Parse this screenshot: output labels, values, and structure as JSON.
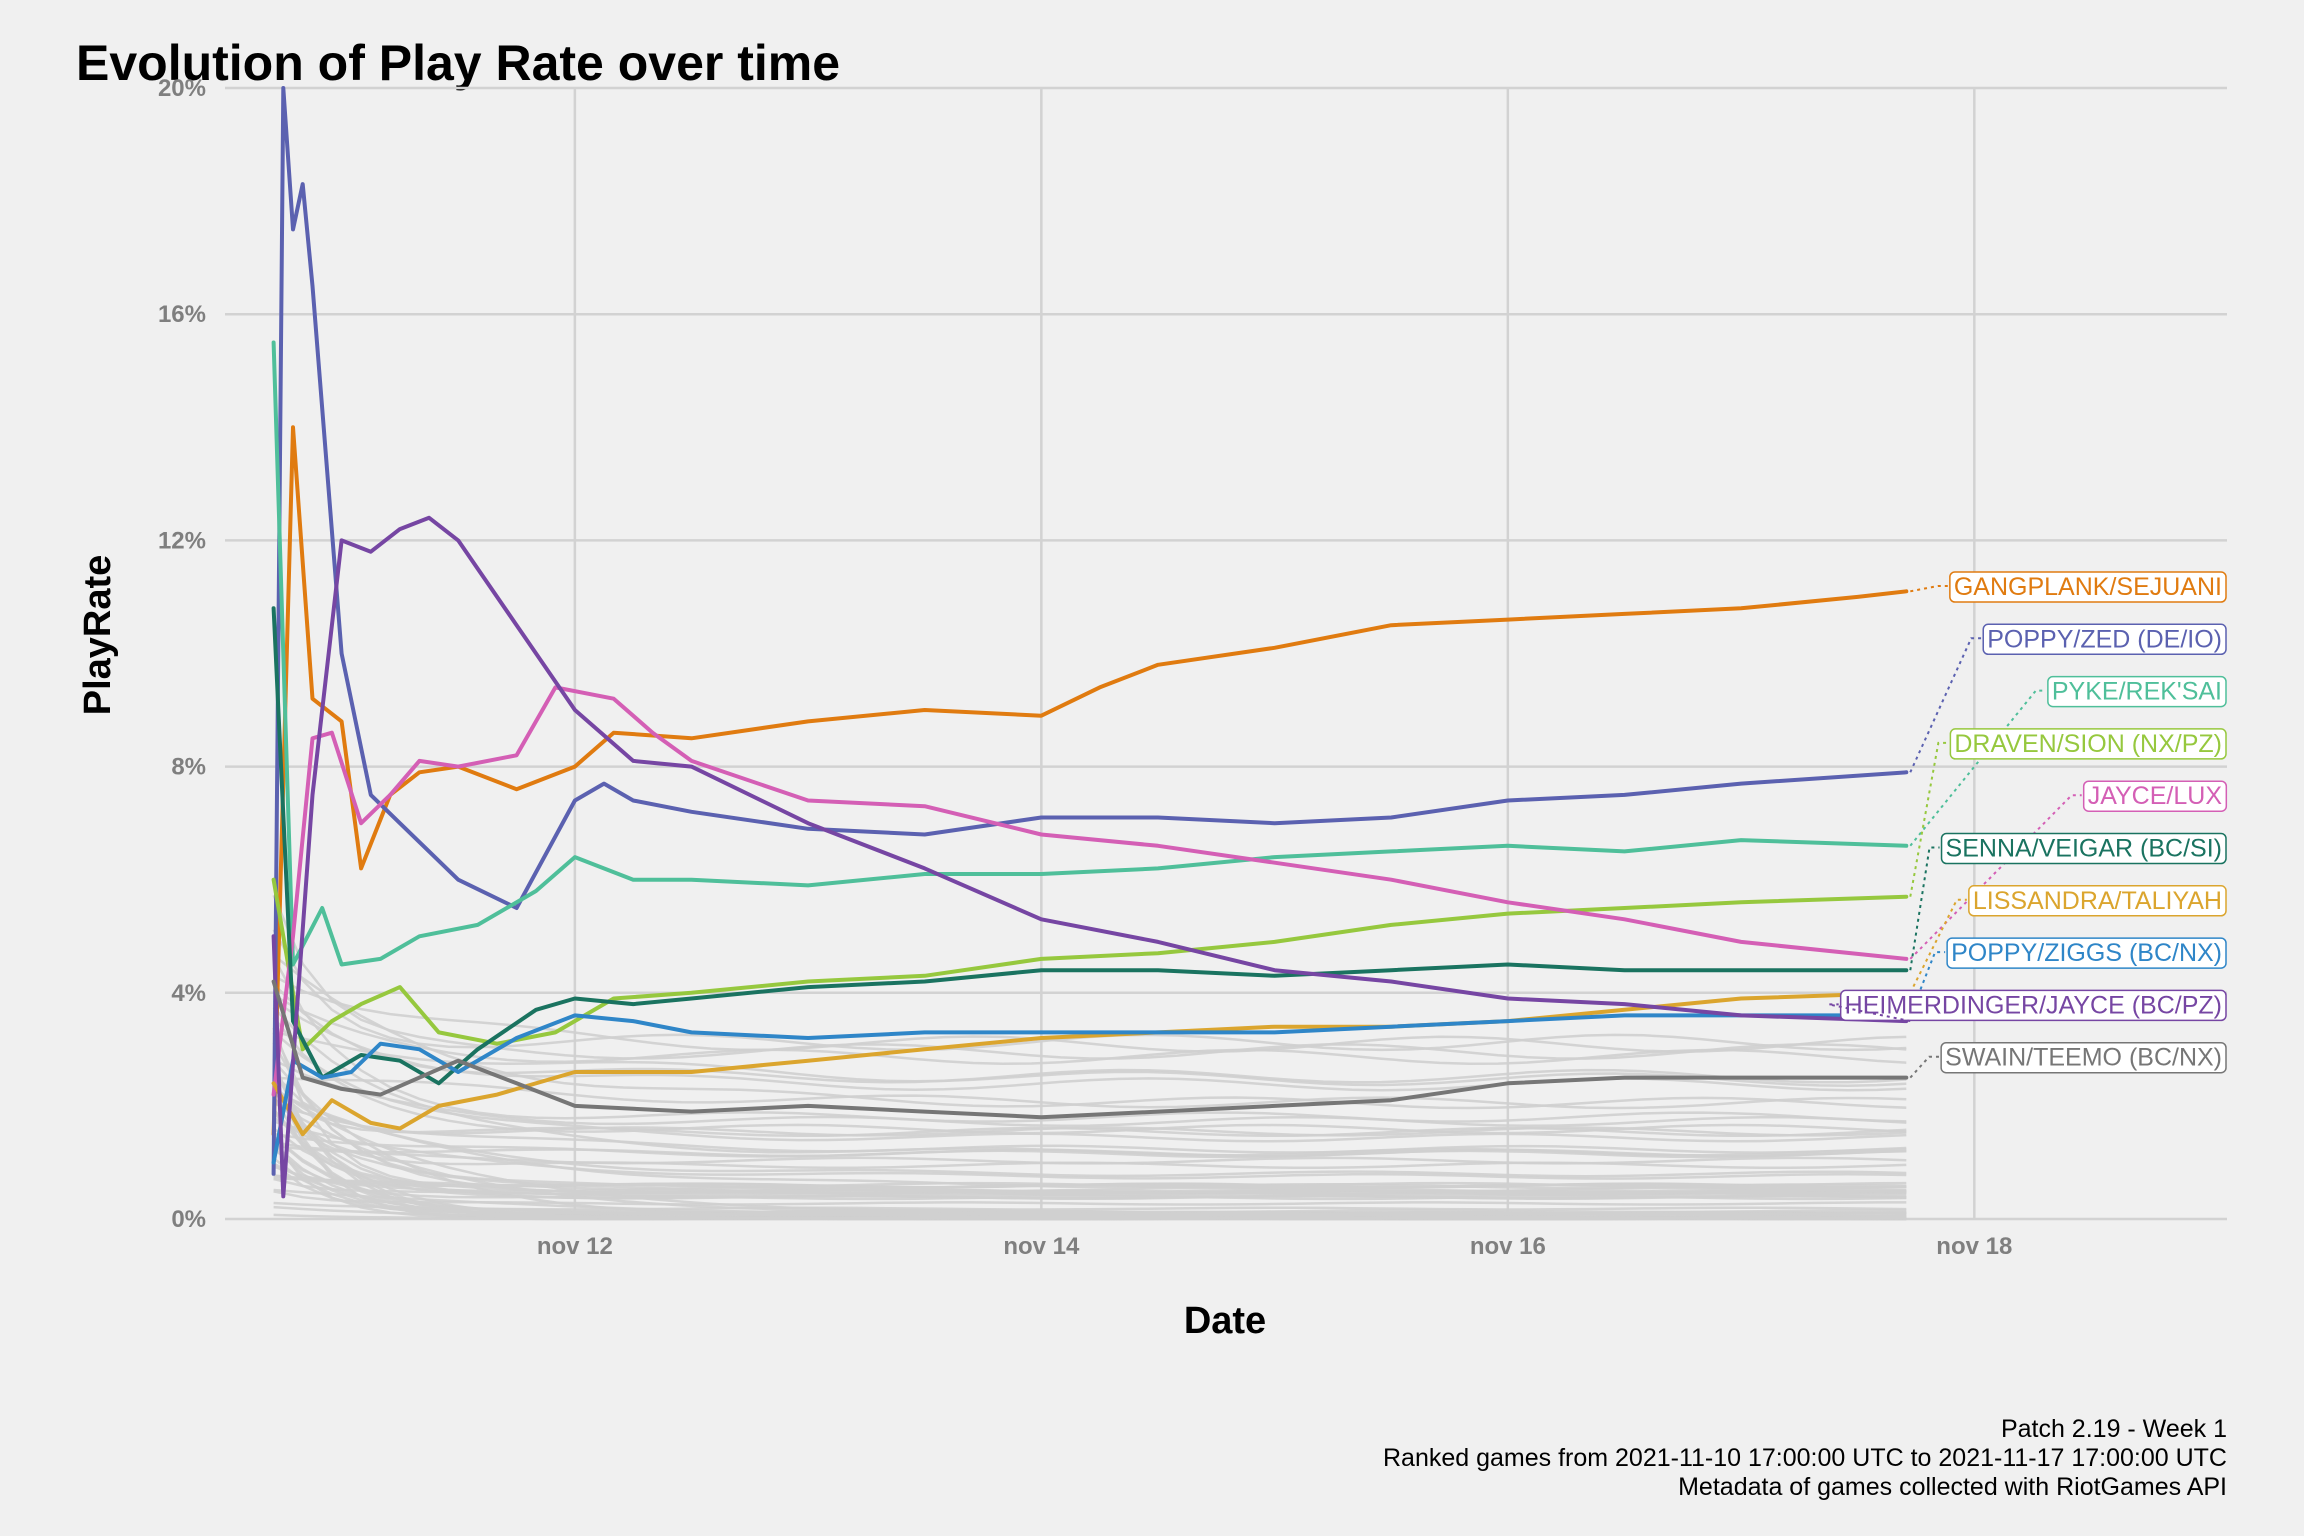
{
  "chart_data": {
    "type": "line",
    "title": "Evolution of Play Rate over time",
    "xlabel": "Date",
    "ylabel": "PlayRate",
    "x_ticks": [
      "nov 12",
      "nov 14",
      "nov 16",
      "nov 18"
    ],
    "y_ticks": [
      "0%",
      "4%",
      "8%",
      "12%",
      "16%",
      "20%"
    ],
    "xlim": [
      "2021-11-10 12:00",
      "2021-11-19 02:00"
    ],
    "ylim": [
      0,
      20
    ],
    "grid": true,
    "legend": "direct labels at right",
    "caption": [
      "Patch 2.19 - Week 1",
      "Ranked games from 2021-11-10 17:00:00 UTC to 2021-11-17 17:00:00 UTC",
      "Metadata of games collected with RiotGames API"
    ],
    "series": [
      {
        "name": "GANGPLANK/SEJUANI",
        "color": "#e07b10",
        "points": [
          [
            "11-10 17:00",
            1.5
          ],
          [
            "11-10 19:00",
            14.0
          ],
          [
            "11-10 21:00",
            9.2
          ],
          [
            "11-11 00:00",
            8.8
          ],
          [
            "11-11 02:00",
            6.2
          ],
          [
            "11-11 05:00",
            7.5
          ],
          [
            "11-11 08:00",
            7.9
          ],
          [
            "11-11 12:00",
            8.0
          ],
          [
            "11-11 18:00",
            7.6
          ],
          [
            "11-12 00:00",
            8.0
          ],
          [
            "11-12 04:00",
            8.6
          ],
          [
            "11-12 12:00",
            8.5
          ],
          [
            "11-13 00:00",
            8.8
          ],
          [
            "11-13 12:00",
            9.0
          ],
          [
            "11-14 00:00",
            8.9
          ],
          [
            "11-14 06:00",
            9.4
          ],
          [
            "11-14 12:00",
            9.8
          ],
          [
            "11-15 00:00",
            10.1
          ],
          [
            "11-15 12:00",
            10.5
          ],
          [
            "11-16 00:00",
            10.6
          ],
          [
            "11-16 12:00",
            10.7
          ],
          [
            "11-17 00:00",
            10.8
          ],
          [
            "11-17 12:00",
            11.0
          ],
          [
            "11-17 17:00",
            11.1
          ]
        ]
      },
      {
        "name": "POPPY/ZED (DE/IO)",
        "color": "#5b61b0",
        "points": [
          [
            "11-10 17:00",
            0.8
          ],
          [
            "11-10 18:00",
            20.0
          ],
          [
            "11-10 19:00",
            17.5
          ],
          [
            "11-10 20:00",
            18.3
          ],
          [
            "11-10 21:00",
            16.5
          ],
          [
            "11-11 00:00",
            10.0
          ],
          [
            "11-11 03:00",
            7.5
          ],
          [
            "11-11 06:00",
            7.0
          ],
          [
            "11-11 12:00",
            6.0
          ],
          [
            "11-11 18:00",
            5.5
          ],
          [
            "11-12 00:00",
            7.4
          ],
          [
            "11-12 03:00",
            7.7
          ],
          [
            "11-12 06:00",
            7.4
          ],
          [
            "11-12 12:00",
            7.2
          ],
          [
            "11-13 00:00",
            6.9
          ],
          [
            "11-13 12:00",
            6.8
          ],
          [
            "11-14 00:00",
            7.1
          ],
          [
            "11-14 12:00",
            7.1
          ],
          [
            "11-15 00:00",
            7.0
          ],
          [
            "11-15 12:00",
            7.1
          ],
          [
            "11-16 00:00",
            7.4
          ],
          [
            "11-16 12:00",
            7.5
          ],
          [
            "11-17 00:00",
            7.7
          ],
          [
            "11-17 17:00",
            7.9
          ]
        ]
      },
      {
        "name": "PYKE/REK'SAI",
        "color": "#4fbf9a",
        "points": [
          [
            "11-10 17:00",
            15.5
          ],
          [
            "11-10 19:00",
            4.5
          ],
          [
            "11-10 22:00",
            5.5
          ],
          [
            "11-11 00:00",
            4.5
          ],
          [
            "11-11 04:00",
            4.6
          ],
          [
            "11-11 08:00",
            5.0
          ],
          [
            "11-11 14:00",
            5.2
          ],
          [
            "11-11 20:00",
            5.8
          ],
          [
            "11-12 00:00",
            6.4
          ],
          [
            "11-12 06:00",
            6.0
          ],
          [
            "11-12 12:00",
            6.0
          ],
          [
            "11-13 00:00",
            5.9
          ],
          [
            "11-13 12:00",
            6.1
          ],
          [
            "11-14 00:00",
            6.1
          ],
          [
            "11-14 12:00",
            6.2
          ],
          [
            "11-15 00:00",
            6.4
          ],
          [
            "11-15 12:00",
            6.5
          ],
          [
            "11-16 00:00",
            6.6
          ],
          [
            "11-16 12:00",
            6.5
          ],
          [
            "11-17 00:00",
            6.7
          ],
          [
            "11-17 17:00",
            6.6
          ]
        ]
      },
      {
        "name": "DRAVEN/SION (NX/PZ)",
        "color": "#96c83e",
        "points": [
          [
            "11-10 17:00",
            6.0
          ],
          [
            "11-10 20:00",
            3.0
          ],
          [
            "11-10 23:00",
            3.5
          ],
          [
            "11-11 02:00",
            3.8
          ],
          [
            "11-11 06:00",
            4.1
          ],
          [
            "11-11 10:00",
            3.3
          ],
          [
            "11-11 16:00",
            3.1
          ],
          [
            "11-11 22:00",
            3.3
          ],
          [
            "11-12 04:00",
            3.9
          ],
          [
            "11-12 12:00",
            4.0
          ],
          [
            "11-13 00:00",
            4.2
          ],
          [
            "11-13 12:00",
            4.3
          ],
          [
            "11-14 00:00",
            4.6
          ],
          [
            "11-14 12:00",
            4.7
          ],
          [
            "11-15 00:00",
            4.9
          ],
          [
            "11-15 12:00",
            5.2
          ],
          [
            "11-16 00:00",
            5.4
          ],
          [
            "11-16 12:00",
            5.5
          ],
          [
            "11-17 00:00",
            5.6
          ],
          [
            "11-17 17:00",
            5.7
          ]
        ]
      },
      {
        "name": "JAYCE/LUX",
        "color": "#d45fb5",
        "points": [
          [
            "11-10 17:00",
            2.2
          ],
          [
            "11-10 19:00",
            5.0
          ],
          [
            "11-10 21:00",
            8.5
          ],
          [
            "11-10 23:00",
            8.6
          ],
          [
            "11-11 02:00",
            7.0
          ],
          [
            "11-11 05:00",
            7.5
          ],
          [
            "11-11 08:00",
            8.1
          ],
          [
            "11-11 12:00",
            8.0
          ],
          [
            "11-11 18:00",
            8.2
          ],
          [
            "11-11 22:00",
            9.4
          ],
          [
            "11-12 04:00",
            9.2
          ],
          [
            "11-12 08:00",
            8.6
          ],
          [
            "11-12 12:00",
            8.1
          ],
          [
            "11-13 00:00",
            7.4
          ],
          [
            "11-13 12:00",
            7.3
          ],
          [
            "11-14 00:00",
            6.8
          ],
          [
            "11-14 12:00",
            6.6
          ],
          [
            "11-15 00:00",
            6.3
          ],
          [
            "11-15 12:00",
            6.0
          ],
          [
            "11-16 00:00",
            5.6
          ],
          [
            "11-16 12:00",
            5.3
          ],
          [
            "11-17 00:00",
            4.9
          ],
          [
            "11-17 17:00",
            4.6
          ]
        ]
      },
      {
        "name": "SENNA/VEIGAR (BC/SI)",
        "color": "#1a7360",
        "points": [
          [
            "11-10 17:00",
            10.8
          ],
          [
            "11-10 19:00",
            3.5
          ],
          [
            "11-10 22:00",
            2.5
          ],
          [
            "11-11 02:00",
            2.9
          ],
          [
            "11-11 06:00",
            2.8
          ],
          [
            "11-11 10:00",
            2.4
          ],
          [
            "11-11 14:00",
            3.0
          ],
          [
            "11-11 20:00",
            3.7
          ],
          [
            "11-12 00:00",
            3.9
          ],
          [
            "11-12 06:00",
            3.8
          ],
          [
            "11-12 12:00",
            3.9
          ],
          [
            "11-13 00:00",
            4.1
          ],
          [
            "11-13 12:00",
            4.2
          ],
          [
            "11-14 00:00",
            4.4
          ],
          [
            "11-14 12:00",
            4.4
          ],
          [
            "11-15 00:00",
            4.3
          ],
          [
            "11-15 12:00",
            4.4
          ],
          [
            "11-16 00:00",
            4.5
          ],
          [
            "11-16 12:00",
            4.4
          ],
          [
            "11-17 00:00",
            4.4
          ],
          [
            "11-17 17:00",
            4.4
          ]
        ]
      },
      {
        "name": "LISSANDRA/TALIYAH",
        "color": "#dba52e",
        "points": [
          [
            "11-10 17:00",
            2.4
          ],
          [
            "11-10 20:00",
            1.5
          ],
          [
            "11-10 23:00",
            2.1
          ],
          [
            "11-11 03:00",
            1.7
          ],
          [
            "11-11 06:00",
            1.6
          ],
          [
            "11-11 10:00",
            2.0
          ],
          [
            "11-11 16:00",
            2.2
          ],
          [
            "11-12 00:00",
            2.6
          ],
          [
            "11-12 12:00",
            2.6
          ],
          [
            "11-13 00:00",
            2.8
          ],
          [
            "11-13 06:00",
            2.9
          ],
          [
            "11-13 12:00",
            3.0
          ],
          [
            "11-14 00:00",
            3.2
          ],
          [
            "11-14 12:00",
            3.3
          ],
          [
            "11-15 00:00",
            3.4
          ],
          [
            "11-15 12:00",
            3.4
          ],
          [
            "11-16 00:00",
            3.5
          ],
          [
            "11-16 12:00",
            3.7
          ],
          [
            "11-17 00:00",
            3.9
          ],
          [
            "11-17 17:00",
            4.0
          ]
        ]
      },
      {
        "name": "POPPY/ZIGGS (BC/NX)",
        "color": "#2f86c8",
        "points": [
          [
            "11-10 17:00",
            1.0
          ],
          [
            "11-10 19:00",
            2.8
          ],
          [
            "11-10 22:00",
            2.5
          ],
          [
            "11-11 01:00",
            2.6
          ],
          [
            "11-11 04:00",
            3.1
          ],
          [
            "11-11 08:00",
            3.0
          ],
          [
            "11-11 12:00",
            2.6
          ],
          [
            "11-11 18:00",
            3.2
          ],
          [
            "11-12 00:00",
            3.6
          ],
          [
            "11-12 06:00",
            3.5
          ],
          [
            "11-12 12:00",
            3.3
          ],
          [
            "11-13 00:00",
            3.2
          ],
          [
            "11-13 12:00",
            3.3
          ],
          [
            "11-14 00:00",
            3.3
          ],
          [
            "11-14 12:00",
            3.3
          ],
          [
            "11-15 00:00",
            3.3
          ],
          [
            "11-15 12:00",
            3.4
          ],
          [
            "11-16 00:00",
            3.5
          ],
          [
            "11-16 12:00",
            3.6
          ],
          [
            "11-17 00:00",
            3.6
          ],
          [
            "11-17 17:00",
            3.6
          ]
        ]
      },
      {
        "name": "HEIMERDINGER/JAYCE (BC/PZ)",
        "color": "#7646a3",
        "points": [
          [
            "11-10 17:00",
            5.0
          ],
          [
            "11-10 18:00",
            0.4
          ],
          [
            "11-10 21:00",
            7.5
          ],
          [
            "11-11 00:00",
            12.0
          ],
          [
            "11-11 03:00",
            11.8
          ],
          [
            "11-11 06:00",
            12.2
          ],
          [
            "11-11 09:00",
            12.4
          ],
          [
            "11-11 12:00",
            12.0
          ],
          [
            "11-11 18:00",
            10.5
          ],
          [
            "11-12 00:00",
            9.0
          ],
          [
            "11-12 06:00",
            8.1
          ],
          [
            "11-12 12:00",
            8.0
          ],
          [
            "11-13 00:00",
            7.0
          ],
          [
            "11-13 12:00",
            6.2
          ],
          [
            "11-14 00:00",
            5.3
          ],
          [
            "11-14 12:00",
            4.9
          ],
          [
            "11-15 00:00",
            4.4
          ],
          [
            "11-15 12:00",
            4.2
          ],
          [
            "11-16 00:00",
            3.9
          ],
          [
            "11-16 12:00",
            3.8
          ],
          [
            "11-17 00:00",
            3.6
          ],
          [
            "11-17 17:00",
            3.5
          ]
        ]
      },
      {
        "name": "SWAIN/TEEMO (BC/NX)",
        "color": "#767676",
        "points": [
          [
            "11-10 17:00",
            4.2
          ],
          [
            "11-10 20:00",
            2.5
          ],
          [
            "11-11 00:00",
            2.3
          ],
          [
            "11-11 04:00",
            2.2
          ],
          [
            "11-11 08:00",
            2.5
          ],
          [
            "11-11 12:00",
            2.8
          ],
          [
            "11-11 18:00",
            2.4
          ],
          [
            "11-12 00:00",
            2.0
          ],
          [
            "11-12 12:00",
            1.9
          ],
          [
            "11-13 00:00",
            2.0
          ],
          [
            "11-13 12:00",
            1.9
          ],
          [
            "11-14 00:00",
            1.8
          ],
          [
            "11-14 12:00",
            1.9
          ],
          [
            "11-15 00:00",
            2.0
          ],
          [
            "11-15 12:00",
            2.1
          ],
          [
            "11-16 00:00",
            2.4
          ],
          [
            "11-16 12:00",
            2.5
          ],
          [
            "11-17 00:00",
            2.5
          ],
          [
            "11-17 17:00",
            2.5
          ]
        ]
      }
    ],
    "background_series_count": 60
  }
}
